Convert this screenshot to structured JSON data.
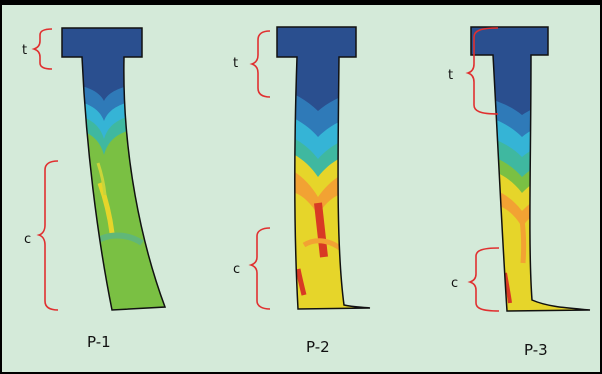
{
  "panels": [
    {
      "id": "P-1",
      "label": "P-1",
      "t_label": "t",
      "c_label": "c"
    },
    {
      "id": "P-2",
      "label": "P-2",
      "t_label": "t",
      "c_label": "c"
    },
    {
      "id": "P-3",
      "label": "P-3",
      "t_label": "t",
      "c_label": "c"
    }
  ],
  "colors": {
    "background": "#d4ead9",
    "bracket": "#e03030",
    "navy": "#2a4f8f",
    "blue": "#2f7ab8",
    "cyan": "#35b4d6",
    "teal": "#3fb8a0",
    "green": "#7ac043",
    "yellow": "#e6d52a",
    "orange": "#f2a233",
    "red": "#d83a24"
  }
}
